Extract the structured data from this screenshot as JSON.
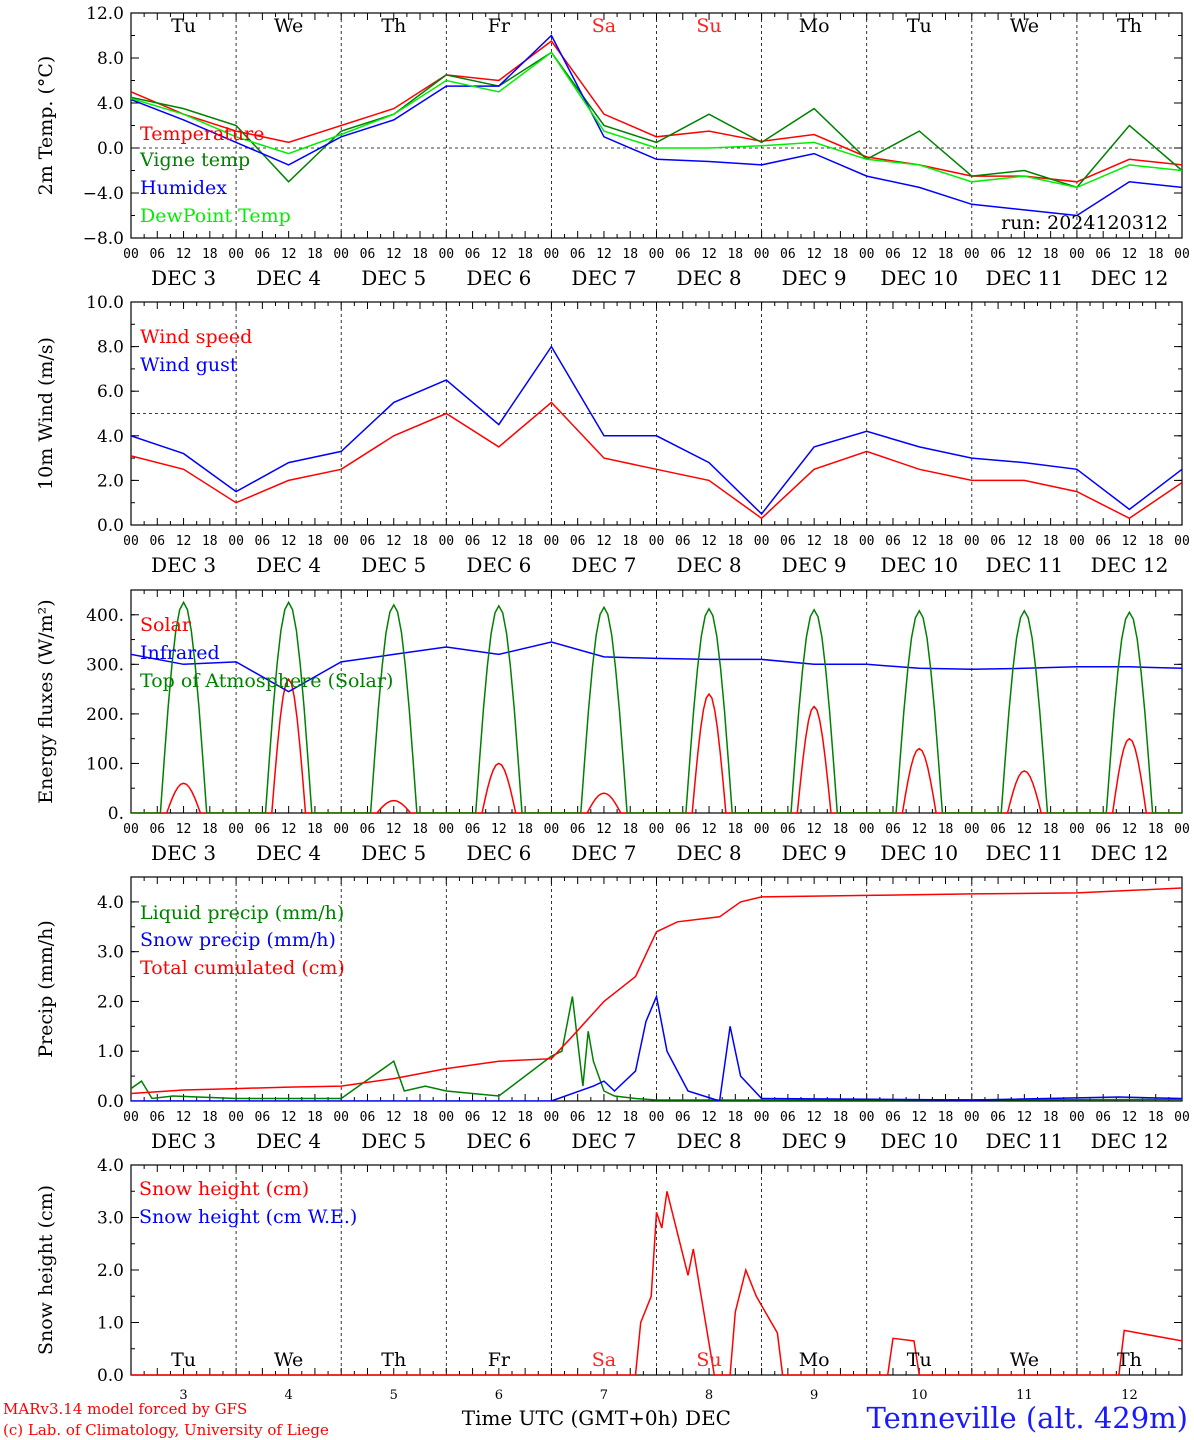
{
  "meteogram": {
    "station": "Tenneville (alt. 429m)",
    "run_label": "run: 2024120312",
    "credit_line1": "MARv3.14 model forced by GFS",
    "credit_line2": "(c) Lab. of Climatology, University of Liege",
    "xaxis_title": "Time UTC (GMT+0h)",
    "xaxis_month": "DEC",
    "hour_ticks": [
      "00",
      "06",
      "12",
      "18"
    ],
    "last_hour_tick": "00",
    "date_labels": [
      "DEC 3",
      "DEC 4",
      "DEC 5",
      "DEC 6",
      "DEC 7",
      "DEC 8",
      "DEC 9",
      "DEC 10",
      "DEC 11",
      "DEC 12"
    ],
    "day_numbers": [
      "3",
      "4",
      "5",
      "6",
      "7",
      "8",
      "9",
      "10",
      "11",
      "12"
    ],
    "weekdays": [
      "Tu",
      "We",
      "Th",
      "Fr",
      "Sa",
      "Su",
      "Mo",
      "Tu",
      "We",
      "Th"
    ],
    "weekend_color": "#ff2020",
    "weekday_color": "#000000"
  },
  "chart_data": [
    {
      "type": "line",
      "ylabel": "2m Temp. (°C)",
      "ylim": [
        -8,
        12
      ],
      "yticks": [
        "12.0",
        "8.0",
        "4.0",
        "0.0",
        "−4.0",
        "−8.0"
      ],
      "ytick_values": [
        12,
        8,
        4,
        0,
        -4,
        -8
      ],
      "refline": 0,
      "x_days": [
        0,
        0.5,
        1,
        1.5,
        2,
        2.5,
        3,
        3.5,
        4,
        4.5,
        5,
        5.5,
        6,
        6.5,
        7,
        7.5,
        8,
        8.5,
        9,
        9.5,
        10
      ],
      "series": [
        {
          "name": "Temperature",
          "color": "#ff0000",
          "values": [
            5.0,
            3.0,
            1.5,
            0.5,
            2.0,
            3.5,
            6.5,
            6.0,
            9.5,
            3.0,
            1.0,
            1.5,
            0.6,
            1.2,
            -0.8,
            -1.5,
            -2.5,
            -2.5,
            -3.0,
            -1.0,
            -1.5
          ]
        },
        {
          "name": "Vigne temp",
          "color": "#008000",
          "values": [
            4.5,
            3.5,
            2.0,
            -3.0,
            1.5,
            3.0,
            6.5,
            5.5,
            8.5,
            2.0,
            0.5,
            3.0,
            0.5,
            3.5,
            -1.0,
            1.5,
            -2.5,
            -2.0,
            -3.5,
            2.0,
            -2.0
          ]
        },
        {
          "name": "Humidex",
          "color": "#0000ff",
          "values": [
            4.3,
            2.5,
            0.5,
            -1.5,
            1.0,
            2.5,
            5.5,
            5.5,
            10.0,
            1.0,
            -1.0,
            -1.2,
            -1.5,
            -0.5,
            -2.5,
            -3.5,
            -5.0,
            -5.5,
            -6.0,
            -3.0,
            -3.5
          ]
        },
        {
          "name": "DewPoint Temp",
          "color": "#00ee00",
          "values": [
            4.4,
            3.0,
            1.0,
            -0.5,
            1.2,
            3.0,
            6.0,
            5.0,
            8.5,
            1.5,
            0.0,
            0.0,
            0.2,
            0.5,
            -1.0,
            -1.5,
            -3.0,
            -2.5,
            -3.5,
            -1.5,
            -2.0
          ]
        }
      ]
    },
    {
      "type": "line",
      "ylabel": "10m Wind (m/s)",
      "ylim": [
        0,
        10
      ],
      "yticks": [
        "10.0",
        "8.0",
        "6.0",
        "4.0",
        "2.0",
        "0.0"
      ],
      "ytick_values": [
        10,
        8,
        6,
        4,
        2,
        0
      ],
      "refline": 5,
      "x_days": [
        0,
        0.5,
        1,
        1.5,
        2,
        2.5,
        3,
        3.5,
        4,
        4.5,
        5,
        5.5,
        6,
        6.5,
        7,
        7.5,
        8,
        8.5,
        9,
        9.5,
        10
      ],
      "series": [
        {
          "name": "Wind speed",
          "color": "#ff0000",
          "values": [
            3.1,
            2.5,
            1.0,
            2.0,
            2.5,
            4.0,
            5.0,
            3.5,
            5.5,
            3.0,
            2.5,
            2.0,
            0.3,
            2.5,
            3.3,
            2.5,
            2.0,
            2.0,
            1.5,
            0.3,
            1.9
          ]
        },
        {
          "name": "Wind gust",
          "color": "#0000ff",
          "values": [
            4.0,
            3.2,
            1.5,
            2.8,
            3.3,
            5.5,
            6.5,
            4.5,
            8.0,
            4.0,
            4.0,
            2.8,
            0.5,
            3.5,
            4.2,
            3.5,
            3.0,
            2.8,
            2.5,
            0.7,
            2.5
          ]
        }
      ]
    },
    {
      "type": "line",
      "ylabel": "Energy fluxes (W/m²)",
      "ylim": [
        0,
        450
      ],
      "yticks": [
        "400.",
        "300.",
        "200.",
        "100.",
        "0."
      ],
      "ytick_values": [
        400,
        300,
        200,
        100,
        0
      ],
      "series": [
        {
          "name": "Solar",
          "color": "#ff0000",
          "peaks": [
            60,
            270,
            25,
            100,
            40,
            240,
            215,
            130,
            85,
            150
          ]
        },
        {
          "name": "Infrared",
          "color": "#0000ff",
          "x_days": [
            0,
            0.5,
            1,
            1.5,
            2,
            2.5,
            3,
            3.5,
            4,
            4.5,
            5,
            5.5,
            6,
            6.5,
            7,
            7.5,
            8,
            8.5,
            9,
            9.5,
            10
          ],
          "values": [
            320,
            300,
            305,
            245,
            305,
            320,
            335,
            320,
            345,
            315,
            312,
            310,
            310,
            300,
            300,
            292,
            290,
            292,
            295,
            295,
            292
          ]
        },
        {
          "name": "Top of Atmosphere (Solar)",
          "color": "#008000",
          "peaks": [
            425,
            425,
            420,
            418,
            415,
            412,
            410,
            408,
            408,
            405
          ]
        }
      ]
    },
    {
      "type": "line",
      "ylabel": "Precip (mm/h)",
      "ylim": [
        0,
        4.5
      ],
      "yticks": [
        "4.0",
        "3.0",
        "2.0",
        "1.0",
        "0.0"
      ],
      "ytick_values": [
        4,
        3,
        2,
        1,
        0
      ],
      "series": [
        {
          "name": "Liquid precip (mm/h)",
          "color": "#008000",
          "x_days": [
            0,
            0.1,
            0.2,
            0.4,
            1,
            2,
            2.5,
            2.6,
            2.8,
            3,
            3.5,
            4,
            4.1,
            4.2,
            4.3,
            4.35,
            4.4,
            4.5,
            4.6,
            4.8,
            5,
            6,
            10
          ],
          "values": [
            0.25,
            0.4,
            0.05,
            0.1,
            0.05,
            0.05,
            0.8,
            0.2,
            0.3,
            0.2,
            0.1,
            0.9,
            1.0,
            2.1,
            0.3,
            1.4,
            0.8,
            0.2,
            0.1,
            0.05,
            0.02,
            0.02,
            0.03
          ]
        },
        {
          "name": "Snow precip (mm/h)",
          "color": "#0000ff",
          "x_days": [
            0,
            4,
            4.4,
            4.5,
            4.6,
            4.8,
            4.9,
            5,
            5.1,
            5.3,
            5.6,
            5.7,
            5.8,
            6,
            8,
            9.4,
            10
          ],
          "values": [
            0,
            0,
            0.3,
            0.4,
            0.2,
            0.6,
            1.6,
            2.1,
            1.0,
            0.2,
            0,
            1.5,
            0.5,
            0.05,
            0.02,
            0.08,
            0.05
          ]
        },
        {
          "name": "Total cumulated (cm)",
          "color": "#ff0000",
          "x_days": [
            0,
            0.5,
            1,
            1.5,
            2,
            2.5,
            3,
            3.5,
            4,
            4.2,
            4.5,
            4.8,
            5,
            5.2,
            5.6,
            5.8,
            6,
            7,
            8,
            9,
            10
          ],
          "values": [
            0.15,
            0.22,
            0.25,
            0.28,
            0.3,
            0.45,
            0.65,
            0.8,
            0.85,
            1.3,
            2.0,
            2.5,
            3.4,
            3.6,
            3.7,
            4.0,
            4.1,
            4.13,
            4.16,
            4.18,
            4.28
          ]
        }
      ]
    },
    {
      "type": "line",
      "ylabel": "Snow height (cm)",
      "ylim": [
        0,
        4
      ],
      "yticks": [
        "4.0",
        "3.0",
        "2.0",
        "1.0",
        "0.0"
      ],
      "ytick_values": [
        4,
        3,
        2,
        1,
        0
      ],
      "series": [
        {
          "name": "Snow height (cm)",
          "color": "#ff0000",
          "x_days": [
            0,
            4.8,
            4.85,
            4.95,
            5.0,
            5.05,
            5.1,
            5.3,
            5.35,
            5.55,
            5.7,
            5.75,
            5.85,
            5.95,
            6.15,
            6.2,
            6.5,
            7.2,
            7.25,
            7.45,
            7.5,
            7.55,
            9.4,
            9.45,
            10
          ],
          "values": [
            0,
            0,
            1.0,
            1.5,
            3.1,
            2.8,
            3.5,
            1.9,
            2.4,
            0,
            0,
            1.2,
            2.0,
            1.5,
            0.8,
            0,
            0,
            0,
            0.7,
            0.65,
            0,
            0,
            0,
            0.85,
            0.65
          ]
        },
        {
          "name": "Snow height (cm W.E.)",
          "color": "#0000ff",
          "values": []
        }
      ]
    }
  ]
}
